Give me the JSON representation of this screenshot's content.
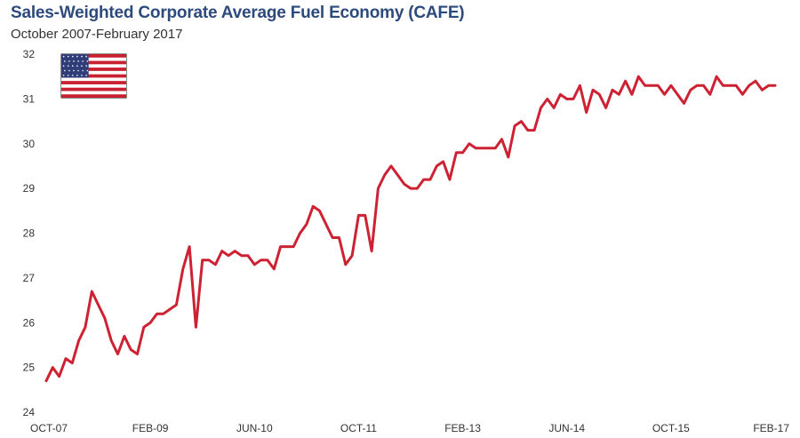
{
  "chart_data": {
    "type": "line",
    "title": "Sales-Weighted Corporate Average Fuel Economy (CAFE)",
    "subtitle": "October 2007-February 2017",
    "xlabel": "",
    "ylabel": "",
    "ylim": [
      24,
      32
    ],
    "yticks": [
      24,
      25,
      26,
      27,
      28,
      29,
      30,
      31,
      32
    ],
    "xlim": [
      "2007-10",
      "2017-02"
    ],
    "xticks": [
      {
        "label": "OCT-07",
        "date": "2007-10"
      },
      {
        "label": "FEB-09",
        "date": "2009-02"
      },
      {
        "label": "JUN-10",
        "date": "2010-06"
      },
      {
        "label": "OCT-11",
        "date": "2011-10"
      },
      {
        "label": "FEB-13",
        "date": "2013-02"
      },
      {
        "label": "JUN-14",
        "date": "2014-06"
      },
      {
        "label": "OCT-15",
        "date": "2015-10"
      },
      {
        "label": "FEB-17",
        "date": "2017-02"
      }
    ],
    "grid": false,
    "legend": "none",
    "line_color": "#cc2233",
    "series": [
      {
        "x": [
          "2007-10",
          "2007-11",
          "2007-12",
          "2008-01",
          "2008-02",
          "2008-03",
          "2008-04",
          "2008-05",
          "2008-06",
          "2008-07",
          "2008-08",
          "2008-09",
          "2008-10",
          "2008-11",
          "2008-12",
          "2009-01",
          "2009-02",
          "2009-03",
          "2009-04",
          "2009-05",
          "2009-06",
          "2009-07",
          "2009-08",
          "2009-09",
          "2009-10",
          "2009-11",
          "2009-12",
          "2010-01",
          "2010-02",
          "2010-03",
          "2010-04",
          "2010-05",
          "2010-06",
          "2010-07",
          "2010-08",
          "2010-09",
          "2010-10",
          "2010-11",
          "2010-12",
          "2011-01",
          "2011-02",
          "2011-03",
          "2011-04",
          "2011-05",
          "2011-06",
          "2011-07",
          "2011-08",
          "2011-09",
          "2011-10",
          "2011-11",
          "2011-12",
          "2012-01",
          "2012-02",
          "2012-03",
          "2012-04",
          "2012-05",
          "2012-06",
          "2012-07",
          "2012-08",
          "2012-09",
          "2012-10",
          "2012-11",
          "2012-12",
          "2013-01",
          "2013-02",
          "2013-03",
          "2013-04",
          "2013-05",
          "2013-06",
          "2013-07",
          "2013-08",
          "2013-09",
          "2013-10",
          "2013-11",
          "2013-12",
          "2014-01",
          "2014-02",
          "2014-03",
          "2014-04",
          "2014-05",
          "2014-06",
          "2014-07",
          "2014-08",
          "2014-09",
          "2014-10",
          "2014-11",
          "2014-12",
          "2015-01",
          "2015-02",
          "2015-03",
          "2015-04",
          "2015-05",
          "2015-06",
          "2015-07",
          "2015-08",
          "2015-09",
          "2015-10",
          "2015-11",
          "2015-12",
          "2016-01",
          "2016-02",
          "2016-03",
          "2016-04",
          "2016-05",
          "2016-06",
          "2016-07",
          "2016-08",
          "2016-09",
          "2016-10",
          "2016-11",
          "2016-12",
          "2017-01",
          "2017-02"
        ],
        "values": [
          24.7,
          25.0,
          24.8,
          25.2,
          25.1,
          25.6,
          25.9,
          26.7,
          26.4,
          26.1,
          25.6,
          25.3,
          25.7,
          25.4,
          25.3,
          25.9,
          26.0,
          26.2,
          26.2,
          26.3,
          26.4,
          27.2,
          27.7,
          25.9,
          27.4,
          27.4,
          27.3,
          27.6,
          27.5,
          27.6,
          27.5,
          27.5,
          27.3,
          27.4,
          27.4,
          27.2,
          27.7,
          27.7,
          27.7,
          28.0,
          28.2,
          28.6,
          28.5,
          28.2,
          27.9,
          27.9,
          27.3,
          27.5,
          28.4,
          28.4,
          27.6,
          29.0,
          29.3,
          29.5,
          29.3,
          29.1,
          29.0,
          29.0,
          29.2,
          29.2,
          29.5,
          29.6,
          29.2,
          29.8,
          29.8,
          30.0,
          29.9,
          29.9,
          29.9,
          29.9,
          30.1,
          29.7,
          30.4,
          30.5,
          30.3,
          30.3,
          30.8,
          31.0,
          30.8,
          31.1,
          31.0,
          31.0,
          31.3,
          30.7,
          31.2,
          31.1,
          30.8,
          31.2,
          31.1,
          31.4,
          31.1,
          31.5,
          31.3,
          31.3,
          31.3,
          31.1,
          31.3,
          31.1,
          30.9,
          31.2,
          31.3,
          31.3,
          31.1,
          31.5,
          31.3,
          31.3,
          31.3,
          31.1,
          31.3,
          31.4,
          31.2,
          31.3,
          31.3
        ]
      }
    ]
  }
}
